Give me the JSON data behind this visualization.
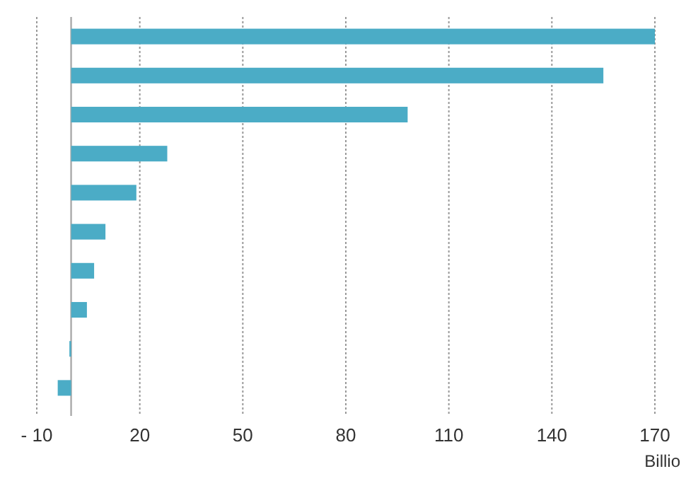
{
  "chart_data": {
    "type": "bar",
    "orientation": "horizontal",
    "xlabel": "Billio",
    "categories": [
      null,
      null,
      null,
      null,
      null,
      null,
      null,
      null,
      null,
      null
    ],
    "values": [
      170,
      155,
      98,
      28,
      19,
      10,
      6.7,
      4.6,
      -0.5,
      -3.9
    ],
    "color": "#4bacc6",
    "xlim": [
      -10,
      170
    ],
    "xticks": [
      {
        "value": -10,
        "label": "- 10"
      },
      20,
      50,
      80,
      110,
      140,
      170
    ],
    "grid": "x"
  }
}
